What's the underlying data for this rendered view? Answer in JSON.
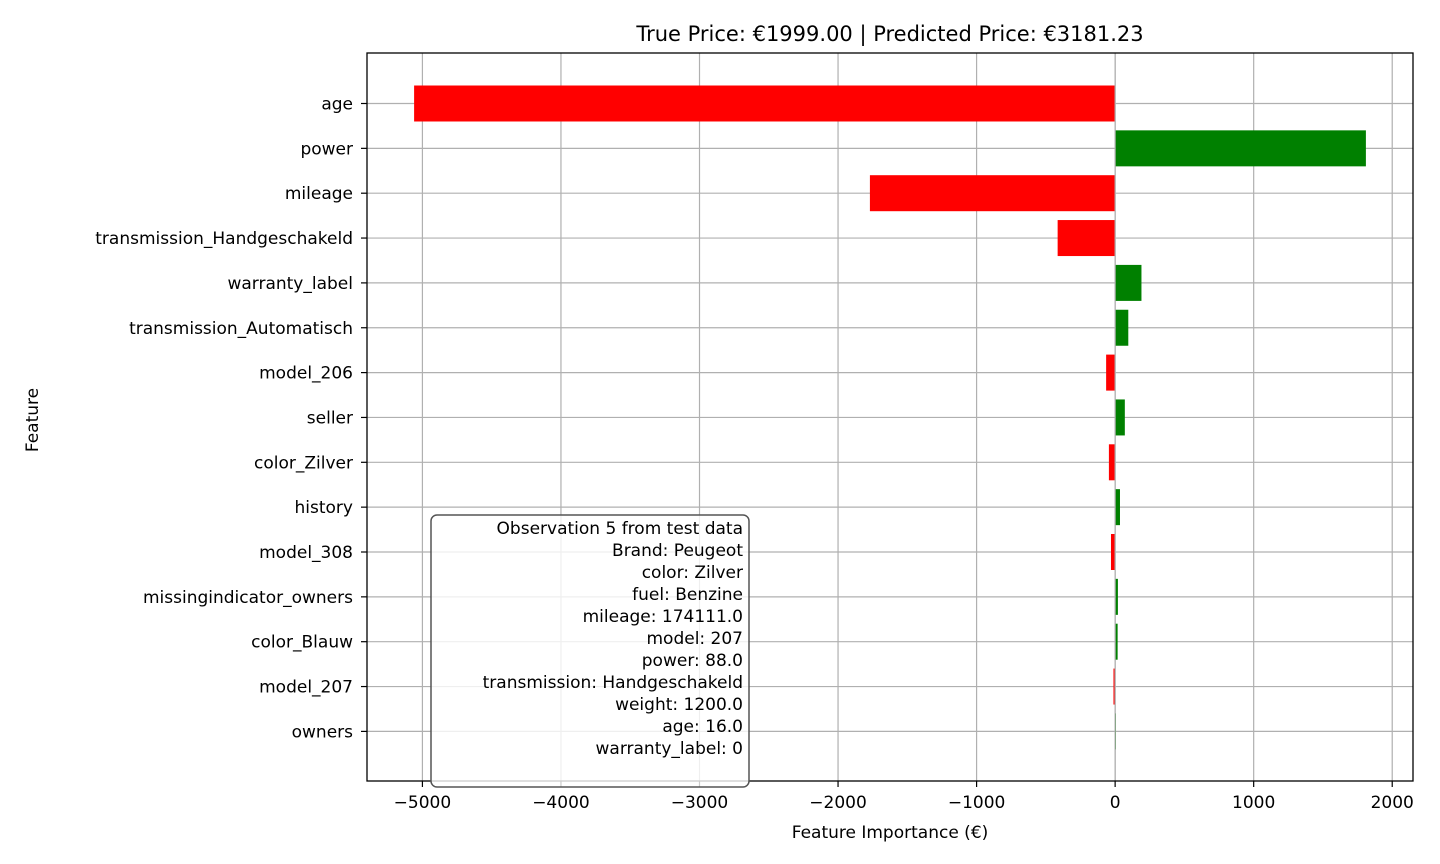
{
  "chart_data": {
    "type": "bar",
    "orientation": "horizontal",
    "title": "True Price: €1999.00 | Predicted Price: €3181.23",
    "xlabel": "Feature Importance (€)",
    "ylabel": "Feature",
    "xlim": [
      -5400,
      2150
    ],
    "xticks": [
      -5000,
      -4000,
      -3000,
      -2000,
      -1000,
      0,
      1000,
      2000
    ],
    "xtick_labels": [
      "−5000",
      "−4000",
      "−3000",
      "−2000",
      "−1000",
      "0",
      "1000",
      "2000"
    ],
    "grid": true,
    "positive_color": "#008000",
    "negative_color": "#ff0000",
    "categories": [
      "age",
      "power",
      "mileage",
      "transmission_Handgeschakeld",
      "warranty_label",
      "transmission_Automatisch",
      "model_206",
      "seller",
      "color_Zilver",
      "history",
      "model_308",
      "missingindicator_owners",
      "color_Blauw",
      "model_207",
      "owners"
    ],
    "values": [
      -5060,
      1810,
      -1770,
      -415,
      190,
      95,
      -65,
      70,
      -45,
      35,
      -30,
      20,
      18,
      -12,
      3
    ],
    "annotation": {
      "lines": [
        "Observation 5 from test data",
        "Brand: Peugeot",
        "color: Zilver",
        "fuel: Benzine",
        "mileage: 174111.0",
        "model: 207",
        "power: 88.0",
        "transmission: Handgeschakeld",
        "weight: 1200.0",
        "age: 16.0",
        "warranty_label: 0"
      ]
    }
  }
}
